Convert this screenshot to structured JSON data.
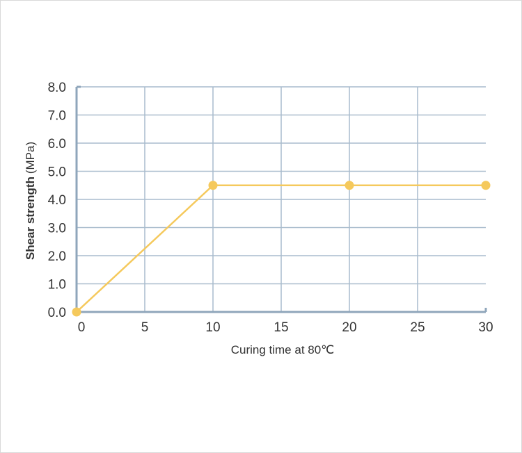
{
  "chart_data": {
    "type": "line",
    "title": "",
    "xlabel": "Curing time at 80℃",
    "ylabel": "Shear strength",
    "ylabel_unit": "(MPa)",
    "xlim": [
      0,
      30
    ],
    "ylim": [
      0,
      8
    ],
    "x_ticks": [
      "0",
      "5",
      "10",
      "15",
      "20",
      "25",
      "30"
    ],
    "y_ticks": [
      "0.0",
      "1.0",
      "2.0",
      "3.0",
      "4.0",
      "5.0",
      "6.0",
      "7.0",
      "8.0"
    ],
    "grid": true,
    "series": [
      {
        "x": [
          0,
          10,
          20,
          30
        ],
        "y": [
          0.0,
          4.5,
          4.5,
          4.5
        ]
      }
    ]
  },
  "colors": {
    "line": "#f5c95c",
    "grid": "#a9bccd",
    "axis": "#8fa6bb",
    "text": "#333333"
  }
}
